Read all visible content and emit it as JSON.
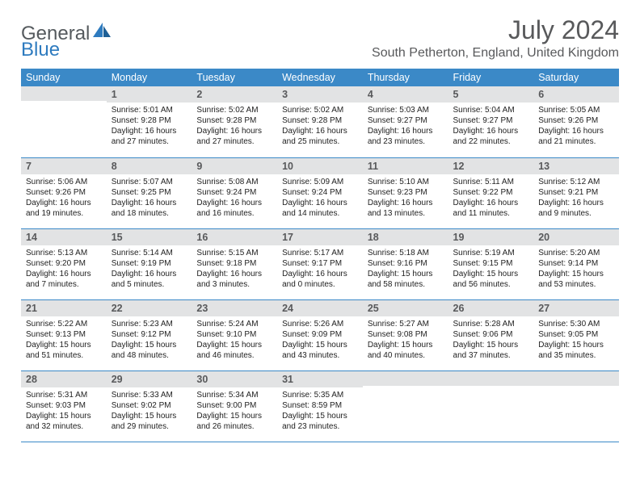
{
  "logo": {
    "general": "General",
    "blue": "Blue"
  },
  "title": "July 2024",
  "location": "South Petherton, England, United Kingdom",
  "colors": {
    "header_bg": "#3b89c7",
    "header_text": "#ffffff",
    "daynum_bg": "#e2e3e4",
    "text": "#58595b",
    "line": "#3b89c7"
  },
  "weekdays": [
    "Sunday",
    "Monday",
    "Tuesday",
    "Wednesday",
    "Thursday",
    "Friday",
    "Saturday"
  ],
  "weeks": [
    [
      {
        "n": "",
        "sr": "",
        "ss": "",
        "dl": ""
      },
      {
        "n": "1",
        "sr": "Sunrise: 5:01 AM",
        "ss": "Sunset: 9:28 PM",
        "dl": "Daylight: 16 hours and 27 minutes."
      },
      {
        "n": "2",
        "sr": "Sunrise: 5:02 AM",
        "ss": "Sunset: 9:28 PM",
        "dl": "Daylight: 16 hours and 27 minutes."
      },
      {
        "n": "3",
        "sr": "Sunrise: 5:02 AM",
        "ss": "Sunset: 9:28 PM",
        "dl": "Daylight: 16 hours and 25 minutes."
      },
      {
        "n": "4",
        "sr": "Sunrise: 5:03 AM",
        "ss": "Sunset: 9:27 PM",
        "dl": "Daylight: 16 hours and 23 minutes."
      },
      {
        "n": "5",
        "sr": "Sunrise: 5:04 AM",
        "ss": "Sunset: 9:27 PM",
        "dl": "Daylight: 16 hours and 22 minutes."
      },
      {
        "n": "6",
        "sr": "Sunrise: 5:05 AM",
        "ss": "Sunset: 9:26 PM",
        "dl": "Daylight: 16 hours and 21 minutes."
      }
    ],
    [
      {
        "n": "7",
        "sr": "Sunrise: 5:06 AM",
        "ss": "Sunset: 9:26 PM",
        "dl": "Daylight: 16 hours and 19 minutes."
      },
      {
        "n": "8",
        "sr": "Sunrise: 5:07 AM",
        "ss": "Sunset: 9:25 PM",
        "dl": "Daylight: 16 hours and 18 minutes."
      },
      {
        "n": "9",
        "sr": "Sunrise: 5:08 AM",
        "ss": "Sunset: 9:24 PM",
        "dl": "Daylight: 16 hours and 16 minutes."
      },
      {
        "n": "10",
        "sr": "Sunrise: 5:09 AM",
        "ss": "Sunset: 9:24 PM",
        "dl": "Daylight: 16 hours and 14 minutes."
      },
      {
        "n": "11",
        "sr": "Sunrise: 5:10 AM",
        "ss": "Sunset: 9:23 PM",
        "dl": "Daylight: 16 hours and 13 minutes."
      },
      {
        "n": "12",
        "sr": "Sunrise: 5:11 AM",
        "ss": "Sunset: 9:22 PM",
        "dl": "Daylight: 16 hours and 11 minutes."
      },
      {
        "n": "13",
        "sr": "Sunrise: 5:12 AM",
        "ss": "Sunset: 9:21 PM",
        "dl": "Daylight: 16 hours and 9 minutes."
      }
    ],
    [
      {
        "n": "14",
        "sr": "Sunrise: 5:13 AM",
        "ss": "Sunset: 9:20 PM",
        "dl": "Daylight: 16 hours and 7 minutes."
      },
      {
        "n": "15",
        "sr": "Sunrise: 5:14 AM",
        "ss": "Sunset: 9:19 PM",
        "dl": "Daylight: 16 hours and 5 minutes."
      },
      {
        "n": "16",
        "sr": "Sunrise: 5:15 AM",
        "ss": "Sunset: 9:18 PM",
        "dl": "Daylight: 16 hours and 3 minutes."
      },
      {
        "n": "17",
        "sr": "Sunrise: 5:17 AM",
        "ss": "Sunset: 9:17 PM",
        "dl": "Daylight: 16 hours and 0 minutes."
      },
      {
        "n": "18",
        "sr": "Sunrise: 5:18 AM",
        "ss": "Sunset: 9:16 PM",
        "dl": "Daylight: 15 hours and 58 minutes."
      },
      {
        "n": "19",
        "sr": "Sunrise: 5:19 AM",
        "ss": "Sunset: 9:15 PM",
        "dl": "Daylight: 15 hours and 56 minutes."
      },
      {
        "n": "20",
        "sr": "Sunrise: 5:20 AM",
        "ss": "Sunset: 9:14 PM",
        "dl": "Daylight: 15 hours and 53 minutes."
      }
    ],
    [
      {
        "n": "21",
        "sr": "Sunrise: 5:22 AM",
        "ss": "Sunset: 9:13 PM",
        "dl": "Daylight: 15 hours and 51 minutes."
      },
      {
        "n": "22",
        "sr": "Sunrise: 5:23 AM",
        "ss": "Sunset: 9:12 PM",
        "dl": "Daylight: 15 hours and 48 minutes."
      },
      {
        "n": "23",
        "sr": "Sunrise: 5:24 AM",
        "ss": "Sunset: 9:10 PM",
        "dl": "Daylight: 15 hours and 46 minutes."
      },
      {
        "n": "24",
        "sr": "Sunrise: 5:26 AM",
        "ss": "Sunset: 9:09 PM",
        "dl": "Daylight: 15 hours and 43 minutes."
      },
      {
        "n": "25",
        "sr": "Sunrise: 5:27 AM",
        "ss": "Sunset: 9:08 PM",
        "dl": "Daylight: 15 hours and 40 minutes."
      },
      {
        "n": "26",
        "sr": "Sunrise: 5:28 AM",
        "ss": "Sunset: 9:06 PM",
        "dl": "Daylight: 15 hours and 37 minutes."
      },
      {
        "n": "27",
        "sr": "Sunrise: 5:30 AM",
        "ss": "Sunset: 9:05 PM",
        "dl": "Daylight: 15 hours and 35 minutes."
      }
    ],
    [
      {
        "n": "28",
        "sr": "Sunrise: 5:31 AM",
        "ss": "Sunset: 9:03 PM",
        "dl": "Daylight: 15 hours and 32 minutes."
      },
      {
        "n": "29",
        "sr": "Sunrise: 5:33 AM",
        "ss": "Sunset: 9:02 PM",
        "dl": "Daylight: 15 hours and 29 minutes."
      },
      {
        "n": "30",
        "sr": "Sunrise: 5:34 AM",
        "ss": "Sunset: 9:00 PM",
        "dl": "Daylight: 15 hours and 26 minutes."
      },
      {
        "n": "31",
        "sr": "Sunrise: 5:35 AM",
        "ss": "Sunset: 8:59 PM",
        "dl": "Daylight: 15 hours and 23 minutes."
      },
      {
        "n": "",
        "sr": "",
        "ss": "",
        "dl": ""
      },
      {
        "n": "",
        "sr": "",
        "ss": "",
        "dl": ""
      },
      {
        "n": "",
        "sr": "",
        "ss": "",
        "dl": ""
      }
    ]
  ]
}
